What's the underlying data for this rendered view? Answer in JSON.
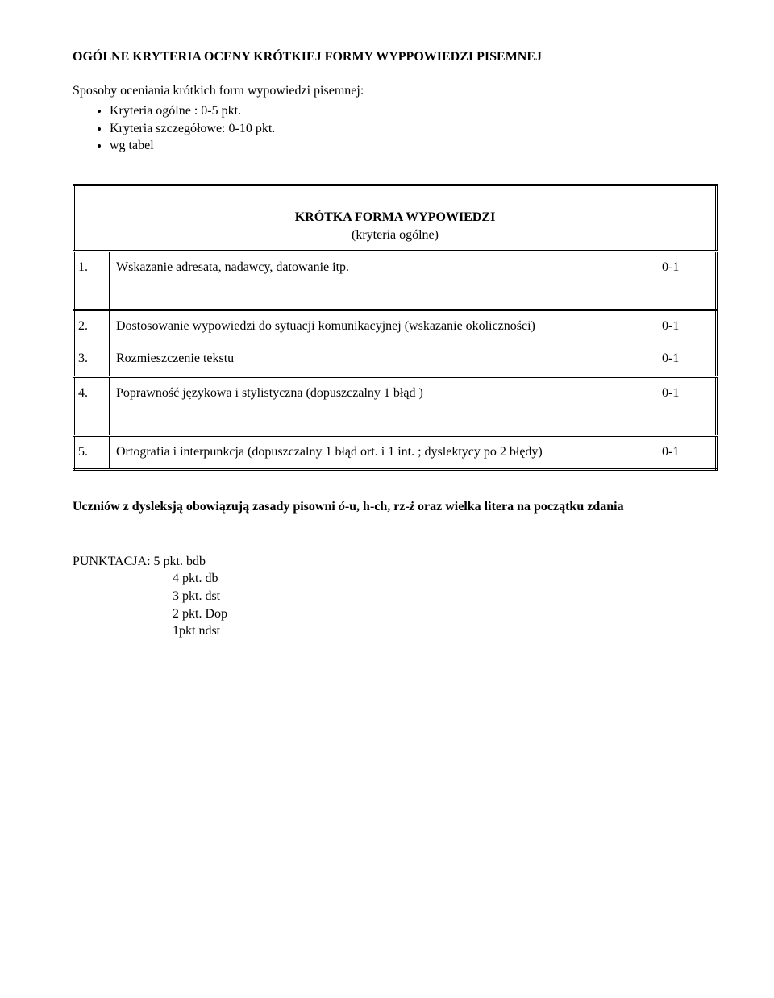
{
  "title": "OGÓLNE KRYTERIA OCENY KRÓTKIEJ FORMY WYPPOWIEDZI PISEMNEJ",
  "intro": "Sposoby oceniania krótkich form wypowiedzi pisemnej:",
  "bullets": [
    "Kryteria ogólne : 0-5  pkt.",
    "Kryteria szczegółowe: 0-10 pkt.",
    "wg tabel"
  ],
  "table_header_main": "KRÓTKA FORMA WYPOWIEDZI",
  "table_header_sub": "(kryteria ogólne)",
  "criteria": {
    "r1": {
      "num": "1.",
      "text": "Wskazanie adresata, nadawcy, datowanie itp.",
      "score": "0-1"
    },
    "r2": {
      "num": "2.",
      "text": "Dostosowanie wypowiedzi do sytuacji komunikacyjnej (wskazanie okoliczności)",
      "score": "0-1"
    },
    "r3": {
      "num": "3.",
      "text": "Rozmieszczenie tekstu",
      "score": "0-1"
    },
    "r4": {
      "num": "4.",
      "text": "Poprawność językowa i stylistyczna  (dopuszczalny 1 błąd )",
      "score": "0-1"
    },
    "r5": {
      "num": "5.",
      "text": "Ortografia  i interpunkcja (dopuszczalny 1 błąd  ort. i 1 int. ; dyslektycy po 2 błędy)",
      "score": "0-1"
    }
  },
  "note_prefix": "Uczniów z dysleksją obowiązują zasady pisowni ",
  "note_em1": "ó",
  "note_mid1": "-u, h-ch, rz-",
  "note_em2": "ż",
  "note_suffix": " oraz wielka litera na początku zdania",
  "punktacja_label": "PUNKTACJA: ",
  "punktacja_first": "5 pkt.  bdb",
  "punktacja_lines": [
    "4 pkt.  db",
    "3 pkt.  dst",
    "2 pkt.  Dop",
    "1pkt   ndst"
  ]
}
